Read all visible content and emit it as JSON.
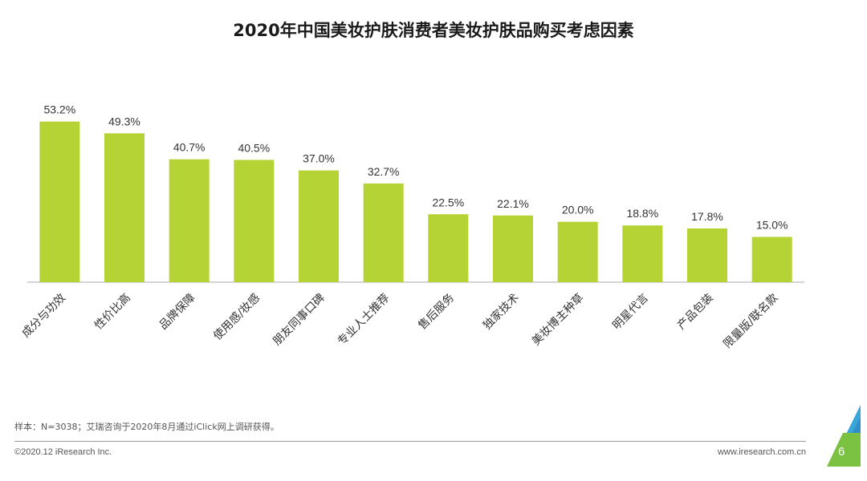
{
  "chart_data": {
    "type": "bar",
    "title": "2020年中国美妆护肤消费者美妆护肤品购买考虑因素",
    "categories": [
      "成分与功效",
      "性价比高",
      "品牌保障",
      "使用感/妆感",
      "朋友同事口碑",
      "专业人士推荐",
      "售后服务",
      "独家技术",
      "美妆博主种草",
      "明星代言",
      "产品包装",
      "限量版/联名款"
    ],
    "values": [
      53.2,
      49.3,
      40.7,
      40.5,
      37.0,
      32.7,
      22.5,
      22.1,
      20.0,
      18.8,
      17.8,
      15.0
    ],
    "value_labels": [
      "53.2%",
      "49.3%",
      "40.7%",
      "40.5%",
      "37.0%",
      "32.7%",
      "22.5%",
      "22.1%",
      "20.0%",
      "18.8%",
      "17.8%",
      "15.0%"
    ],
    "ylim": [
      0,
      60
    ],
    "grid": false,
    "bar_color": "#b5d334",
    "xlabel": "",
    "ylabel": ""
  },
  "footnote": "样本：N=3038；艾瑞咨询于2020年8月通过iClick网上调研获得。",
  "copyright": "©2020.12 iResearch Inc.",
  "website": "www.iresearch.com.cn",
  "page_number": "6",
  "colors": {
    "accent_dark": "#7cc242",
    "accent_light": "#3aa6d8",
    "axis": "#a8a8a8",
    "text": "#333333"
  }
}
